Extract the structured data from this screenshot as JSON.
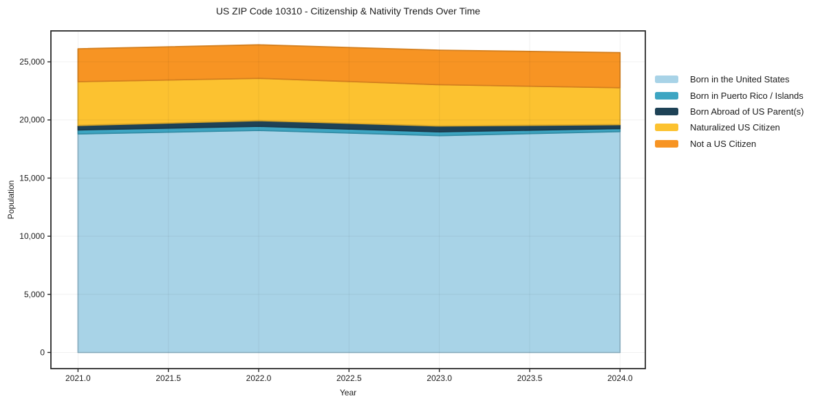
{
  "chart_data": {
    "type": "area",
    "stacked": true,
    "title": "US ZIP Code 10310 - Citizenship & Nativity Trends Over Time",
    "xlabel": "Year",
    "ylabel": "Population",
    "x": [
      2021,
      2022,
      2023,
      2024
    ],
    "series": [
      {
        "name": "Born in the United States",
        "color": "#a8d3e7",
        "values": [
          18800,
          19100,
          18650,
          19000
        ]
      },
      {
        "name": "Born in Puerto Rico / Islands",
        "color": "#3da5c2",
        "values": [
          340,
          350,
          330,
          260
        ]
      },
      {
        "name": "Born Abroad of US Parent(s)",
        "color": "#1e4256",
        "values": [
          390,
          490,
          500,
          340
        ]
      },
      {
        "name": "Naturalized US Citizen",
        "color": "#fcc230",
        "values": [
          3760,
          3640,
          3550,
          3170
        ]
      },
      {
        "name": "Not a US Citizen",
        "color": "#f79423",
        "values": [
          2830,
          2880,
          2970,
          3020
        ]
      }
    ],
    "totals": [
      26120,
      26460,
      26000,
      25790
    ],
    "xlim": [
      2020.85,
      2024.14
    ],
    "ylim": [
      -1390,
      27660
    ],
    "x_ticks": [
      2021.0,
      2021.5,
      2022.0,
      2022.5,
      2023.0,
      2023.5,
      2024.0
    ],
    "x_tick_labels": [
      "2021.0",
      "2021.5",
      "2022.0",
      "2022.5",
      "2023.0",
      "2023.5",
      "2024.0"
    ],
    "y_ticks": [
      0,
      5000,
      10000,
      15000,
      20000,
      25000
    ],
    "y_tick_labels": [
      "0",
      "5,000",
      "10,000",
      "15,000",
      "20,000",
      "25,000"
    ],
    "grid": true,
    "legend_position": "right",
    "background_color": "#ffffff",
    "frame_color": "#262626",
    "grid_color": "rgba(0,0,0,0.06)",
    "text_color": "#1a1a1a"
  }
}
